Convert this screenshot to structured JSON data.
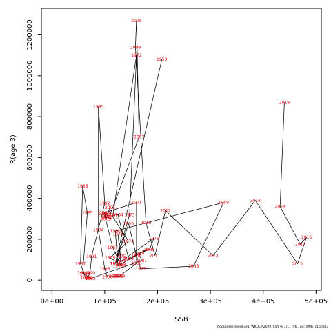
{
  "chart_data": {
    "type": "scatter",
    "title": "",
    "xlabel": "SSB",
    "ylabel": "R(age 3)",
    "xlim": [
      -20000,
      510000
    ],
    "ylim": [
      -50000,
      1330000
    ],
    "x_ticks": [
      0,
      100000,
      200000,
      300000,
      400000,
      500000
    ],
    "x_tick_labels": [
      "0e+00",
      "1e+05",
      "2e+05",
      "3e+05",
      "4e+05",
      "5e+05"
    ],
    "y_ticks": [
      0,
      200000,
      400000,
      600000,
      800000,
      1000000,
      1200000
    ],
    "y_tick_labels": [
      "0",
      "200000",
      "400000",
      "600000",
      "800000",
      "1000000",
      "1200000"
    ],
    "grid": false,
    "connected": true,
    "point_label_color": "#e8000b",
    "points": [
      {
        "year": "1953",
        "x": 208000,
        "y": 1080000
      },
      {
        "year": "1954",
        "x": 120000,
        "y": 80000
      },
      {
        "year": "1955",
        "x": 145000,
        "y": 275000
      },
      {
        "year": "1956",
        "x": 160000,
        "y": 120000
      },
      {
        "year": "1957",
        "x": 168000,
        "y": 55000
      },
      {
        "year": "1958",
        "x": 268000,
        "y": 68000
      },
      {
        "year": "1959",
        "x": 325000,
        "y": 380000
      },
      {
        "year": "1960",
        "x": 120000,
        "y": 240000
      },
      {
        "year": "1961",
        "x": 125000,
        "y": 70000
      },
      {
        "year": "1962",
        "x": 180000,
        "y": 150000
      },
      {
        "year": "1963",
        "x": 145000,
        "y": 105000
      },
      {
        "year": "1964",
        "x": 125000,
        "y": 320000
      },
      {
        "year": "1965",
        "x": 97000,
        "y": 325000
      },
      {
        "year": "1966",
        "x": 100000,
        "y": 315000
      },
      {
        "year": "1967",
        "x": 115000,
        "y": 160000
      },
      {
        "year": "1968",
        "x": 130000,
        "y": 75000
      },
      {
        "year": "1969",
        "x": 110000,
        "y": 110000
      },
      {
        "year": "1970",
        "x": 145000,
        "y": 190000
      },
      {
        "year": "1971",
        "x": 115000,
        "y": 310000
      },
      {
        "year": "1972",
        "x": 160000,
        "y": 1100000
      },
      {
        "year": "1973",
        "x": 147000,
        "y": 320000
      },
      {
        "year": "1974",
        "x": 120000,
        "y": 80000
      },
      {
        "year": "1975",
        "x": 130000,
        "y": 115000
      },
      {
        "year": "1976",
        "x": 125000,
        "y": 225000
      },
      {
        "year": "1977",
        "x": 130000,
        "y": 90000
      },
      {
        "year": "1978",
        "x": 193000,
        "y": 205000
      },
      {
        "year": "1979",
        "x": 185000,
        "y": 150000
      },
      {
        "year": "1980",
        "x": 165000,
        "y": 130000
      },
      {
        "year": "1981",
        "x": 170000,
        "y": 95000
      },
      {
        "year": "1982",
        "x": 73000,
        "y": 8000
      },
      {
        "year": "1983",
        "x": 62000,
        "y": 30000
      },
      {
        "year": "1984",
        "x": 58000,
        "y": 35000
      },
      {
        "year": "1985",
        "x": 67000,
        "y": 330000
      },
      {
        "year": "1986",
        "x": 58000,
        "y": 460000
      },
      {
        "year": "1987",
        "x": 54000,
        "y": 80000
      },
      {
        "year": "1988",
        "x": 64000,
        "y": 10000
      },
      {
        "year": "1989",
        "x": 67000,
        "y": 10000
      },
      {
        "year": "1990",
        "x": 72000,
        "y": 35000
      },
      {
        "year": "1991",
        "x": 75000,
        "y": 115000
      },
      {
        "year": "1992",
        "x": 100000,
        "y": 375000
      },
      {
        "year": "1993",
        "x": 88000,
        "y": 850000
      },
      {
        "year": "1994",
        "x": 88000,
        "y": 245000
      },
      {
        "year": "1995",
        "x": 100000,
        "y": 55000
      },
      {
        "year": "1996",
        "x": 105000,
        "y": 15000
      },
      {
        "year": "1997",
        "x": 118000,
        "y": 20000
      },
      {
        "year": "1998",
        "x": 125000,
        "y": 20000
      },
      {
        "year": "1999",
        "x": 128000,
        "y": 20000
      },
      {
        "year": "2000",
        "x": 160000,
        "y": 82000
      },
      {
        "year": "2001",
        "x": 160000,
        "y": 380000
      },
      {
        "year": "2002",
        "x": 100000,
        "y": 330000
      },
      {
        "year": "2003",
        "x": 102000,
        "y": 300000
      },
      {
        "year": "2004",
        "x": 103000,
        "y": 305000
      },
      {
        "year": "2005",
        "x": 110000,
        "y": 355000
      },
      {
        "year": "2006",
        "x": 110000,
        "y": 320000
      },
      {
        "year": "2007",
        "x": 165000,
        "y": 700000
      },
      {
        "year": "2008",
        "x": 160000,
        "y": 1270000
      },
      {
        "year": "2009",
        "x": 158000,
        "y": 1140000
      },
      {
        "year": "2010",
        "x": 178000,
        "y": 280000
      },
      {
        "year": "2011",
        "x": 195000,
        "y": 120000
      },
      {
        "year": "2012",
        "x": 215000,
        "y": 340000
      },
      {
        "year": "2013",
        "x": 305000,
        "y": 120000
      },
      {
        "year": "2014",
        "x": 385000,
        "y": 390000
      },
      {
        "year": "2015",
        "x": 465000,
        "y": 80000
      },
      {
        "year": "2016",
        "x": 482000,
        "y": 210000
      },
      {
        "year": "2017",
        "x": 470000,
        "y": 175000
      },
      {
        "year": "2018",
        "x": 432000,
        "y": 360000
      },
      {
        "year": "2019",
        "x": 440000,
        "y": 870000
      }
    ]
  },
  "footer": {
    "text": "stockassessment.org,  WKDEM2020_had_6c,  r11756 ,  git:  df0b7c1bcb83"
  }
}
